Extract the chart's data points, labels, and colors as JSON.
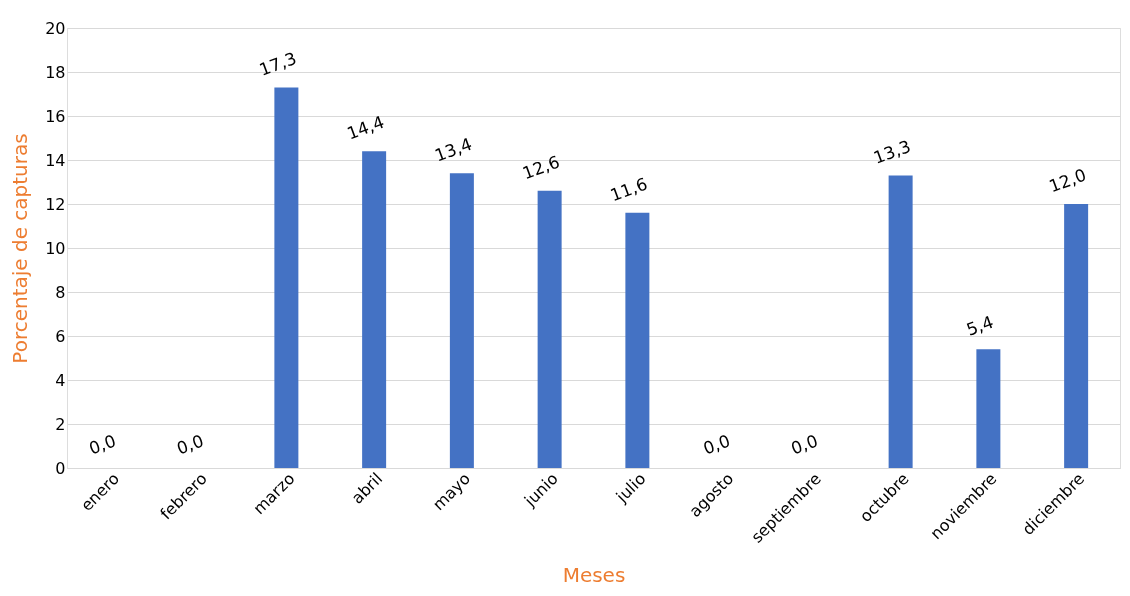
{
  "chart_data": {
    "type": "bar",
    "xlabel": "Meses",
    "ylabel": "Porcentaje de capturas",
    "categories": [
      "enero",
      "febrero",
      "marzo",
      "abril",
      "mayo",
      "junio",
      "julio",
      "agosto",
      "septiembre",
      "octubre",
      "noviembre",
      "diciembre"
    ],
    "values": [
      0.0,
      0.0,
      17.3,
      14.4,
      13.4,
      12.6,
      11.6,
      0.0,
      0.0,
      13.3,
      5.4,
      12.0
    ],
    "value_labels": [
      "0,0",
      "0,0",
      "17,3",
      "14,4",
      "13,4",
      "12,6",
      "11,6",
      "0,0",
      "0,0",
      "13,3",
      "5,4",
      "12,0"
    ],
    "color": "#4472c4",
    "ylim": [
      0,
      20
    ],
    "yticks": [
      0,
      2,
      4,
      6,
      8,
      10,
      12,
      14,
      16,
      18,
      20
    ],
    "grid": "y"
  }
}
